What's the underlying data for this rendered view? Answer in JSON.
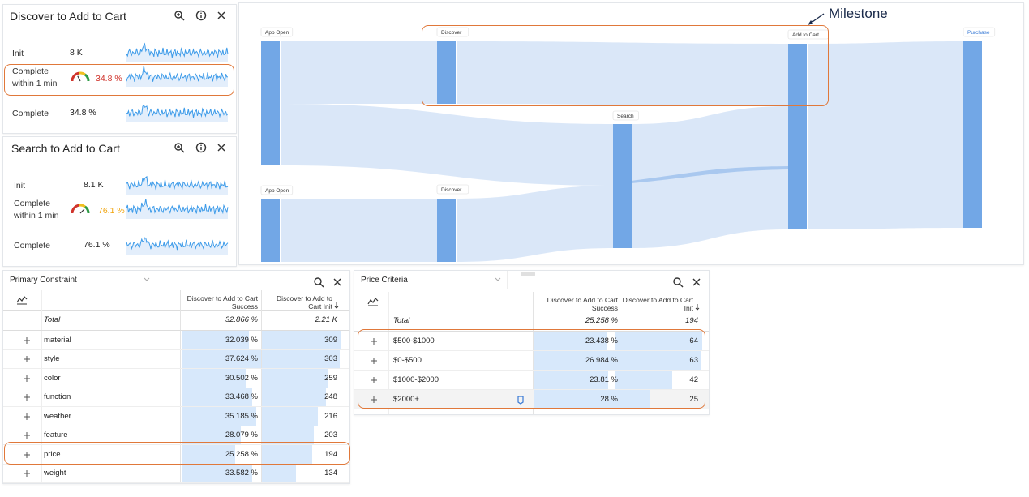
{
  "panels": [
    {
      "title": "Discover to Add to Cart",
      "rows": [
        {
          "label": "Init",
          "value": "8 K"
        },
        {
          "label": "Complete within 1 min",
          "value": "34.8 %",
          "gauge_color": "#d0342c"
        },
        {
          "label": "Complete",
          "value": "34.8 %"
        }
      ]
    },
    {
      "title": "Search to Add to Cart",
      "rows": [
        {
          "label": "Init",
          "value": "8.1 K"
        },
        {
          "label": "Complete within 1 min",
          "value": "76.1 %",
          "gauge_color": "#f0a30a"
        },
        {
          "label": "Complete",
          "value": "76.1 %"
        }
      ]
    }
  ],
  "sankey": {
    "nodes": [
      "App Open",
      "Discover",
      "Add to Cart",
      "Purchase",
      "Search",
      "App Open",
      "Discover"
    ],
    "annotation": "Milestone"
  },
  "tables": [
    {
      "title": "Primary Constraint",
      "columns": [
        "Discover to Add to Cart Success",
        "Discover to Add to Cart Init"
      ],
      "total": {
        "label": "Total",
        "success": "32.866 %",
        "init": "2.21 K"
      },
      "rows": [
        {
          "name": "material",
          "success": "32.039 %",
          "init": 309
        },
        {
          "name": "style",
          "success": "37.624 %",
          "init": 303
        },
        {
          "name": "color",
          "success": "30.502 %",
          "init": 259
        },
        {
          "name": "function",
          "success": "33.468 %",
          "init": 248
        },
        {
          "name": "weather",
          "success": "35.185 %",
          "init": 216
        },
        {
          "name": "feature",
          "success": "28.079 %",
          "init": 203
        },
        {
          "name": "price",
          "success": "25.258 %",
          "init": 194
        },
        {
          "name": "weight",
          "success": "33.582 %",
          "init": 134
        }
      ]
    },
    {
      "title": "Price Criteria",
      "columns": [
        "Discover to Add to Cart Success",
        "Discover to Add to Cart Init"
      ],
      "total": {
        "label": "Total",
        "success": "25.258 %",
        "init": 194
      },
      "rows": [
        {
          "name": "$500-$1000",
          "success": "23.438 %",
          "init": 64
        },
        {
          "name": "$0-$500",
          "success": "26.984 %",
          "init": 63
        },
        {
          "name": "$1000-$2000",
          "success": "23.81 %",
          "init": 42
        },
        {
          "name": "$2000+",
          "success": "28 %",
          "init": 25
        }
      ]
    }
  ]
}
